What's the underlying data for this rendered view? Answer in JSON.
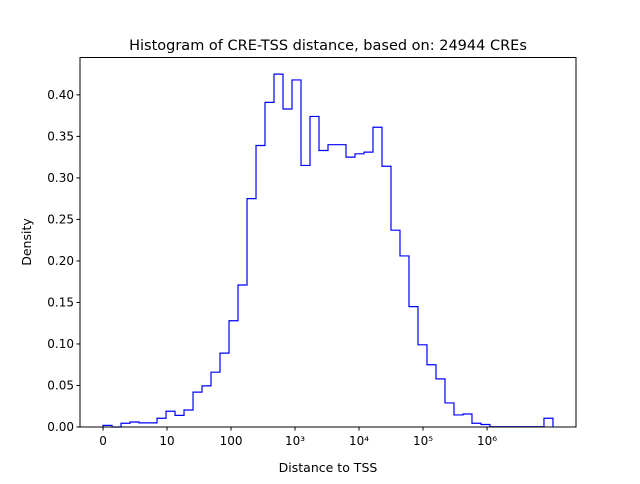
{
  "chart_data": {
    "type": "histogram-step",
    "title": "Histogram of CRE-TSS distance, based on: 24944 CREs",
    "xlabel": "Distance to TSS",
    "ylabel": "Density",
    "x_scale": "log10(distance+1)",
    "xlim": [
      -0.36,
      7.39
    ],
    "ylim": [
      0,
      0.445
    ],
    "x_ticks": [
      0,
      1,
      2,
      3,
      4,
      5,
      6
    ],
    "x_tick_labels": [
      "0",
      "10",
      "100",
      "10³",
      "10⁴",
      "10⁵",
      "10⁶"
    ],
    "y_ticks": [
      0,
      0.05,
      0.1,
      0.15,
      0.2,
      0.25,
      0.3,
      0.35,
      0.4
    ],
    "y_tick_labels": [
      "0.00",
      "0.05",
      "0.10",
      "0.15",
      "0.20",
      "0.25",
      "0.30",
      "0.35",
      "0.40"
    ],
    "bin_start": 0,
    "bin_width": 0.1406,
    "densities": [
      0.002,
      0.0,
      0.0045,
      0.006,
      0.005,
      0.005,
      0.0105,
      0.019,
      0.014,
      0.0205,
      0.042,
      0.0495,
      0.066,
      0.089,
      0.128,
      0.171,
      0.275,
      0.339,
      0.391,
      0.425,
      0.383,
      0.418,
      0.315,
      0.374,
      0.333,
      0.34,
      0.34,
      0.325,
      0.329,
      0.331,
      0.361,
      0.314,
      0.237,
      0.206,
      0.145,
      0.099,
      0.075,
      0.058,
      0.029,
      0.0145,
      0.0157,
      0.0045,
      0.003,
      0.0003,
      0.0003,
      0.0003,
      0.0003,
      0.0003,
      0.0003,
      0.0105
    ],
    "line_color": "#0000ff",
    "grid": false
  }
}
